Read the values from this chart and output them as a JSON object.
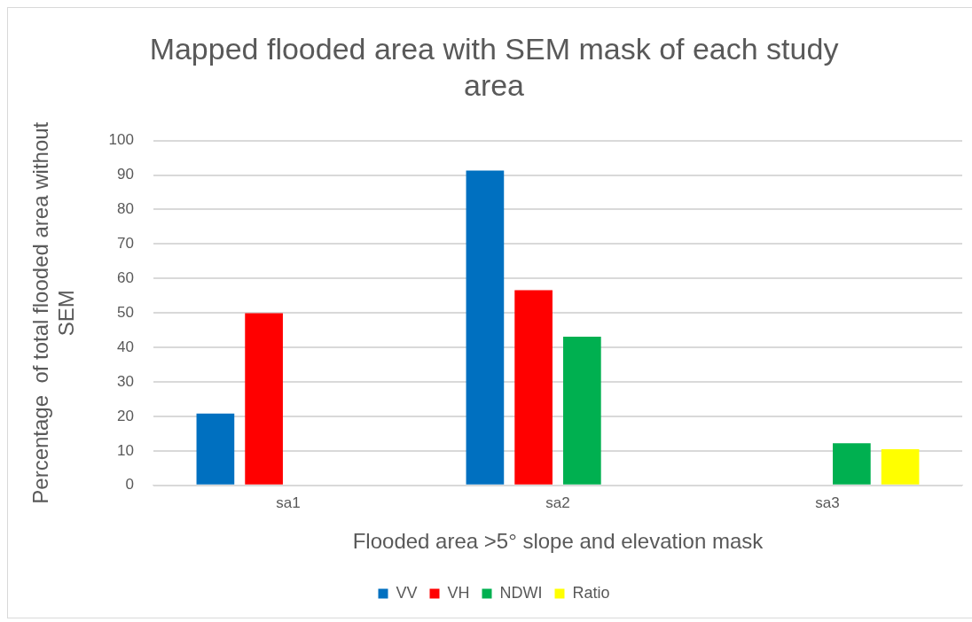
{
  "chart_data": {
    "type": "bar",
    "title": "Mapped flooded area with SEM mask of each study area",
    "xlabel": "Flooded area >5° slope and elevation mask",
    "ylabel": "Percentage  of total flooded area without SEM",
    "categories": [
      "sa1",
      "sa2",
      "sa3"
    ],
    "series": [
      {
        "name": "VV",
        "color": "#0070c0",
        "values": [
          20.8,
          91.3,
          null
        ]
      },
      {
        "name": "VH",
        "color": "#ff0000",
        "values": [
          49.9,
          56.6,
          null
        ]
      },
      {
        "name": "NDWI",
        "color": "#00b050",
        "values": [
          null,
          43.1,
          12.2
        ]
      },
      {
        "name": "Ratio",
        "color": "#ffff00",
        "values": [
          null,
          null,
          10.5
        ]
      }
    ],
    "ylim": [
      0,
      100
    ],
    "yticks": [
      0,
      10,
      20,
      30,
      40,
      50,
      60,
      70,
      80,
      90,
      100
    ],
    "grid": "y",
    "legend": "bottom"
  }
}
